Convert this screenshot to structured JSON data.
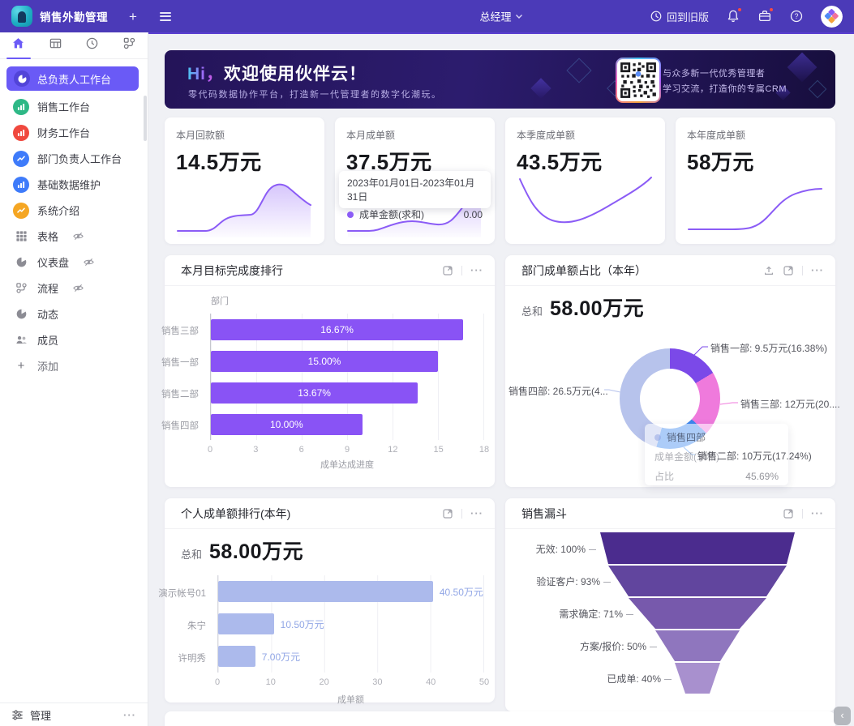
{
  "topbar": {
    "app_title": "销售外勤管理",
    "role": "总经理",
    "back_label": "回到旧版"
  },
  "sidebar": {
    "tabs": [
      {
        "icon": "home",
        "active": true
      },
      {
        "icon": "grid",
        "active": false
      },
      {
        "icon": "clock",
        "active": false
      },
      {
        "icon": "flow",
        "active": false
      }
    ],
    "items": [
      {
        "label": "总负责人工作台",
        "icon": "pie-workbench",
        "color": "#5244D8",
        "selected": true
      },
      {
        "label": "销售工作台",
        "icon": "bar-workbench",
        "color": "#2EB886"
      },
      {
        "label": "财务工作台",
        "icon": "bar-workbench",
        "color": "#F0483E"
      },
      {
        "label": "部门负责人工作台",
        "icon": "line-workbench",
        "color": "#3E7BFA"
      },
      {
        "label": "基础数据维护",
        "icon": "bar-workbench",
        "color": "#3E7BFA"
      },
      {
        "label": "系统介绍",
        "icon": "line-workbench",
        "color": "#F5A623"
      },
      {
        "label": "表格",
        "icon": "grid-gray",
        "hidden_eye": true
      },
      {
        "label": "仪表盘",
        "icon": "pie-gray",
        "hidden_eye": true
      },
      {
        "label": "流程",
        "icon": "flow-gray",
        "hidden_eye": true
      },
      {
        "label": "动态",
        "icon": "pulse-gray"
      },
      {
        "label": "成员",
        "icon": "people-gray"
      },
      {
        "label": "添加",
        "icon": "plus",
        "add": true
      }
    ],
    "manage_label": "管理"
  },
  "banner": {
    "title_prefix": "Hi，",
    "title_rest": "欢迎使用伙伴云！",
    "subtitle": "零代码数据协作平台，打造新一代管理者的数字化潮玩。",
    "qr_line1": "与众多新一代优秀管理者",
    "qr_line2": "学习交流，打造你的专属CRM"
  },
  "stat_cards": [
    {
      "label": "本月回款额",
      "value": "14.5万元"
    },
    {
      "label": "本月成单额",
      "value": "37.5万元",
      "tooltip": {
        "date_range": "2023年01月01日-2023年01月31日",
        "series": "成单金额(求和)",
        "value": "0.00",
        "dot_color": "#8B5CF6"
      }
    },
    {
      "label": "本季度成单额",
      "value": "43.5万元"
    },
    {
      "label": "本年度成单额",
      "value": "58万元"
    }
  ],
  "chart_data": [
    {
      "id": "monthly_target_ranking",
      "type": "bar",
      "orientation": "horizontal",
      "title": "本月目标完成度排行",
      "categories": [
        "销售三部",
        "销售一部",
        "销售二部",
        "销售四部"
      ],
      "values": [
        16.67,
        15.0,
        13.67,
        10.0
      ],
      "value_labels": [
        "16.67%",
        "15.00%",
        "13.67%",
        "10.00%"
      ],
      "xlabel": "成单达成进度",
      "ylabel": "部门",
      "xlim": [
        0,
        18
      ],
      "xticks": [
        0,
        3,
        6,
        9,
        12,
        15,
        18
      ],
      "bar_color": "#8953F5",
      "grid": true
    },
    {
      "id": "dept_share",
      "type": "pie",
      "subtype": "donut",
      "title": "部门成单额占比（本年）",
      "total_label": "总和",
      "total_value": "58.00万元",
      "slices": [
        {
          "name": "销售一部",
          "value": 9.5,
          "percent": 16.38,
          "label": "销售一部: 9.5万元(16.38%)",
          "color": "#7B49E8"
        },
        {
          "name": "销售三部",
          "value": 12,
          "percent": 20.69,
          "label": "销售三部: 12万元(20....",
          "color": "#EF7ADC"
        },
        {
          "name": "销售二部",
          "value": 10,
          "percent": 17.24,
          "label": "销售二部: 10万元(17.24%)",
          "color": "#3C86EE"
        },
        {
          "name": "销售四部",
          "value": 26.5,
          "percent": 45.69,
          "label": "销售四部: 26.5万元(4...",
          "color": "#B7C3EC"
        }
      ],
      "tooltip": {
        "name": "销售四部",
        "row_label": "成单金额(求和)",
        "share_label": "占比",
        "share_value": "45.69%"
      }
    },
    {
      "id": "personal_ranking",
      "type": "bar",
      "orientation": "horizontal",
      "title": "个人成单额排行(本年)",
      "total_label": "总和",
      "total_value": "58.00万元",
      "categories": [
        "演示帐号01",
        "朱宁",
        "许明秀"
      ],
      "values": [
        40.5,
        10.5,
        7.0
      ],
      "value_labels": [
        "40.50万元",
        "10.50万元",
        "7.00万元"
      ],
      "xlabel": "成单额",
      "xlim": [
        0,
        50
      ],
      "xticks": [
        0,
        10,
        20,
        30,
        40,
        50
      ],
      "bar_color": "#ACBAEC",
      "value_color": "#92A7E6",
      "grid": true
    },
    {
      "id": "sales_funnel",
      "type": "funnel",
      "title": "销售漏斗",
      "stages": [
        {
          "label": "无效",
          "percent": 100
        },
        {
          "label": "验证客户",
          "percent": 93
        },
        {
          "label": "需求确定",
          "percent": 71
        },
        {
          "label": "方案/报价",
          "percent": 50
        },
        {
          "label": "已成单",
          "percent": 40
        }
      ],
      "colors": [
        "#4B2C8E",
        "#61459E",
        "#7759AC",
        "#8F76BE",
        "#A890CE"
      ]
    }
  ],
  "misc": {
    "collapse_glyph": "‹"
  }
}
